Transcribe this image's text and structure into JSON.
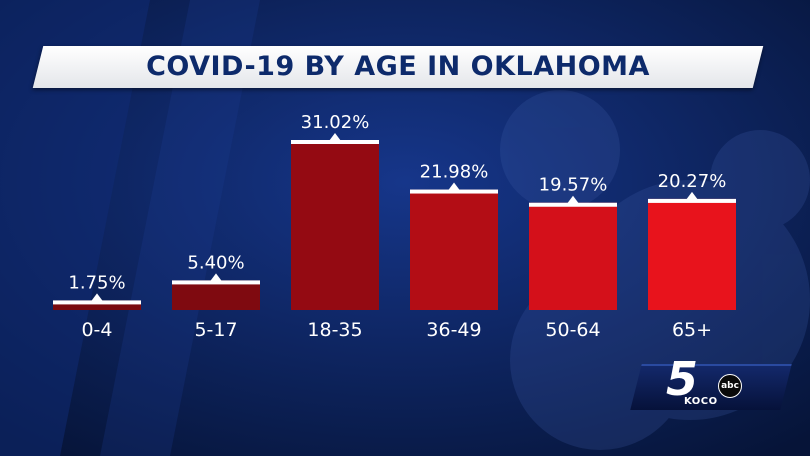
{
  "chart_data": {
    "type": "bar",
    "title": "COVID-19 BY AGE IN OKLAHOMA",
    "categories": [
      "0-4",
      "5-17",
      "18-35",
      "36-49",
      "50-64",
      "65+"
    ],
    "values": [
      1.75,
      5.4,
      31.02,
      21.98,
      19.57,
      20.27
    ],
    "value_labels": [
      "1.75%",
      "5.40%",
      "31.02%",
      "21.98%",
      "19.57%",
      "20.27%"
    ],
    "unit": "%",
    "ylim": [
      0,
      33
    ],
    "grid": false,
    "legend": "none",
    "bar_colors": [
      "#7a0a0f",
      "#7f0a10",
      "#940a12",
      "#b30d15",
      "#d4101a",
      "#e8131c"
    ],
    "cap_color": "#ffffff",
    "label_color": "#ffffff"
  },
  "logo": {
    "number": "5",
    "network": "abc",
    "call_sign": "KOCO"
  },
  "colors": {
    "background": "#0a1f55",
    "title_text": "#0d2a6b"
  }
}
